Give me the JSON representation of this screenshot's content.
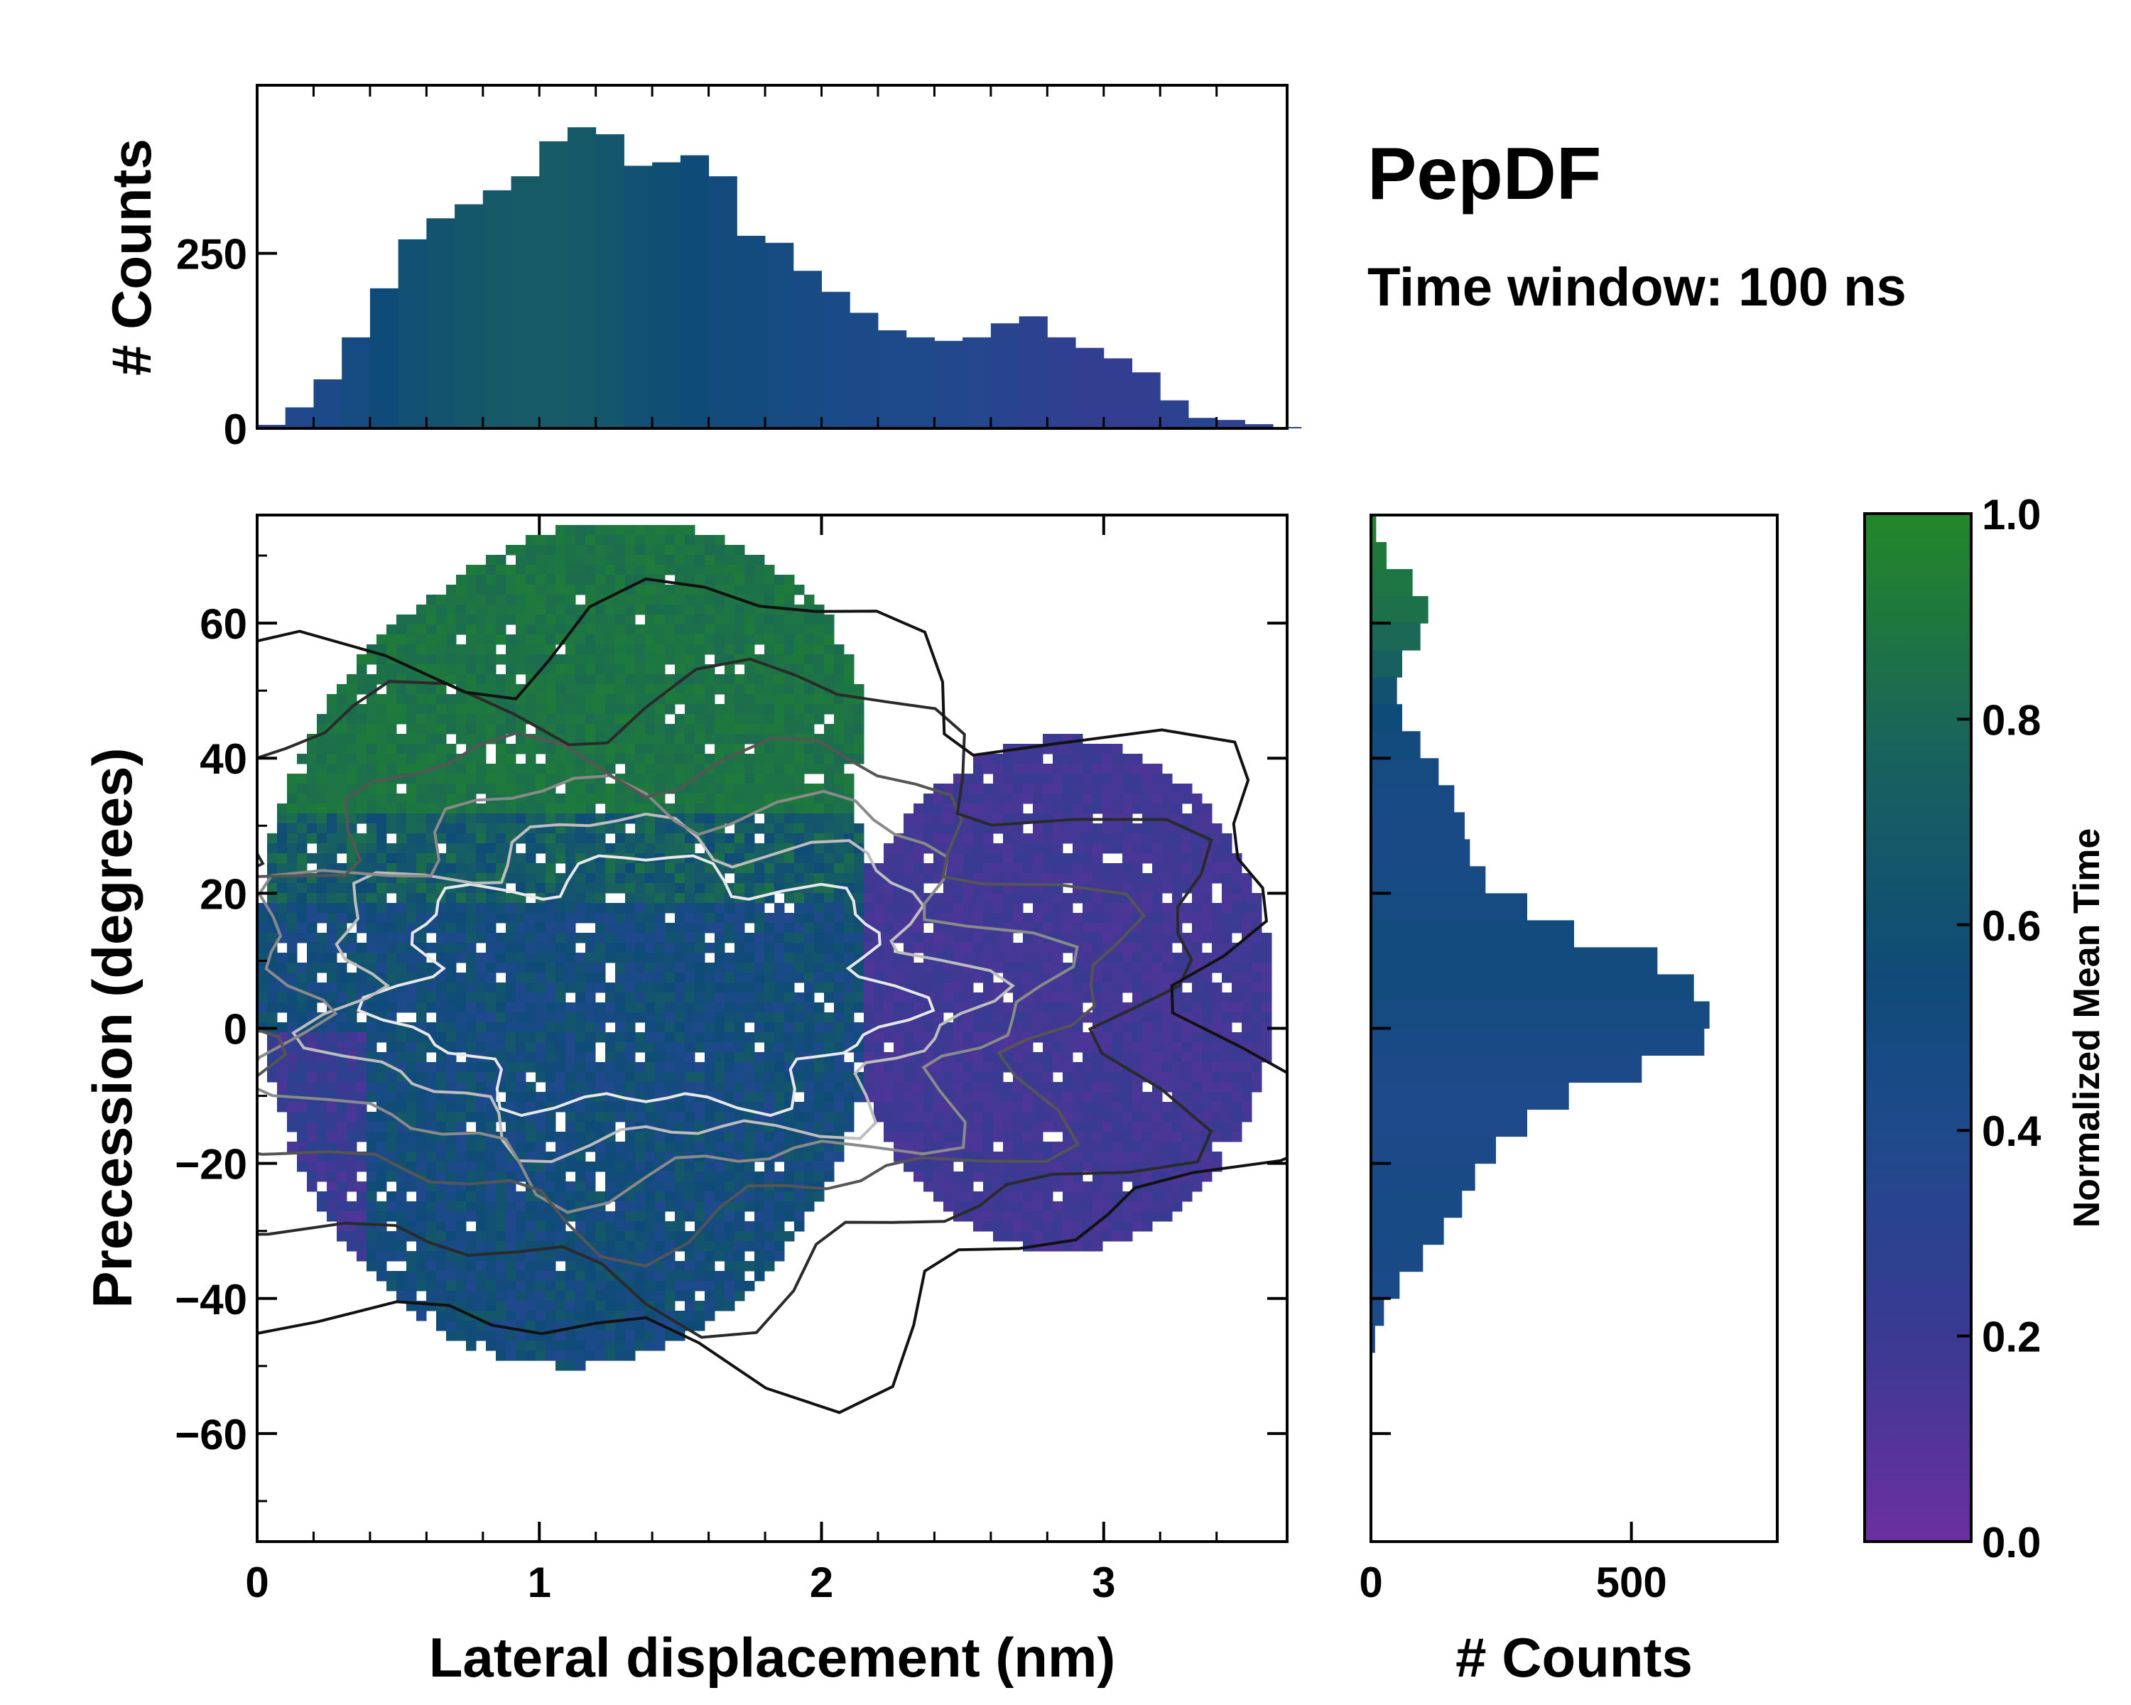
{
  "chart_data": {
    "type": "joint-histogram",
    "title": "PepDF",
    "subtitle": "Time window: 100 ns",
    "main": {
      "type": "heatmap",
      "xlabel": "Lateral displacement (nm)",
      "ylabel": "Precession (degrees)",
      "xlim": [
        0,
        3.65
      ],
      "ylim": [
        -76,
        76
      ],
      "xticks": [
        0,
        1,
        2,
        3
      ],
      "yticks": [
        -60,
        -40,
        -20,
        0,
        20,
        40,
        60
      ],
      "color_meaning": "Normalized Mean Time",
      "regions": [
        {
          "name": "main-cluster",
          "x_range": [
            0.05,
            2.3
          ],
          "y_range": [
            -50,
            75
          ],
          "mean_time": "green (late) for precession > 25, blue (mid) around 0"
        },
        {
          "name": "right-lobe",
          "x_range": [
            2.0,
            3.6
          ],
          "y_range": [
            -40,
            45
          ],
          "mean_time": "purple (early)"
        }
      ],
      "contour_center": {
        "x": 1.0,
        "y": 0
      }
    },
    "top_histogram": {
      "type": "bar",
      "ylabel": "# Counts",
      "yticks": [
        0,
        250
      ],
      "ylim": [
        0,
        490
      ],
      "x": [
        0.0,
        0.1,
        0.2,
        0.3,
        0.4,
        0.5,
        0.6,
        0.7,
        0.8,
        0.9,
        1.0,
        1.1,
        1.2,
        1.3,
        1.4,
        1.5,
        1.6,
        1.7,
        1.8,
        1.9,
        2.0,
        2.1,
        2.2,
        2.3,
        2.4,
        2.5,
        2.6,
        2.7,
        2.8,
        2.9,
        3.0,
        3.1,
        3.2,
        3.3,
        3.4,
        3.5,
        3.6
      ],
      "values": [
        5,
        30,
        70,
        130,
        200,
        270,
        300,
        320,
        340,
        360,
        410,
        430,
        420,
        375,
        380,
        390,
        360,
        275,
        265,
        225,
        195,
        165,
        140,
        130,
        125,
        130,
        150,
        160,
        130,
        115,
        100,
        80,
        40,
        15,
        12,
        6,
        2
      ],
      "mean_time": [
        0.3,
        0.38,
        0.42,
        0.48,
        0.55,
        0.6,
        0.63,
        0.66,
        0.68,
        0.7,
        0.7,
        0.68,
        0.65,
        0.6,
        0.58,
        0.55,
        0.52,
        0.5,
        0.48,
        0.46,
        0.44,
        0.42,
        0.4,
        0.4,
        0.38,
        0.36,
        0.32,
        0.3,
        0.28,
        0.26,
        0.25,
        0.26,
        0.3,
        0.32,
        0.3,
        0.28,
        0.25
      ]
    },
    "right_histogram": {
      "type": "barh",
      "xlabel": "# Counts",
      "xticks": [
        0,
        500
      ],
      "xlim": [
        0,
        780
      ],
      "y": [
        74,
        70,
        66,
        62,
        58,
        54,
        50,
        46,
        42,
        38,
        34,
        30,
        26,
        22,
        18,
        14,
        10,
        6,
        2,
        -2,
        -6,
        -10,
        -14,
        -18,
        -22,
        -26,
        -30,
        -34,
        -38,
        -42,
        -46
      ],
      "values": [
        10,
        30,
        80,
        110,
        95,
        60,
        50,
        60,
        95,
        130,
        160,
        180,
        190,
        220,
        300,
        390,
        550,
        620,
        650,
        640,
        520,
        380,
        300,
        240,
        200,
        175,
        140,
        100,
        55,
        25,
        8
      ],
      "mean_time": [
        0.95,
        0.9,
        0.88,
        0.85,
        0.8,
        0.75,
        0.62,
        0.55,
        0.5,
        0.48,
        0.46,
        0.45,
        0.45,
        0.46,
        0.48,
        0.5,
        0.5,
        0.5,
        0.48,
        0.45,
        0.42,
        0.4,
        0.4,
        0.42,
        0.45,
        0.46,
        0.46,
        0.45,
        0.44,
        0.42,
        0.4
      ]
    },
    "colorbar": {
      "label": "Normalized Mean Time",
      "ticks": [
        "0.0",
        "0.2",
        "0.4",
        "0.6",
        "0.8",
        "1.0"
      ],
      "colors": [
        "#6b2fa0",
        "#3a3a92",
        "#1e4a8c",
        "#0f4b78",
        "#186060",
        "#228828"
      ]
    }
  }
}
